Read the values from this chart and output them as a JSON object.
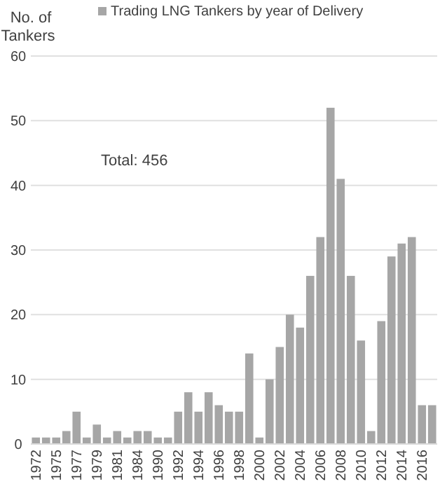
{
  "chart_data": {
    "type": "bar",
    "ylabel": "No. of Tankers",
    "categories": [
      "1972",
      null,
      "1975",
      null,
      "1977",
      null,
      "1979",
      null,
      "1981",
      null,
      "1984",
      null,
      "1990",
      null,
      "1992",
      null,
      "1994",
      null,
      "1996",
      null,
      "1998",
      null,
      "2000",
      null,
      "2002",
      null,
      "2004",
      null,
      "2006",
      null,
      "2008",
      null,
      "2010",
      null,
      "2012",
      null,
      "2014",
      null,
      "2016",
      null
    ],
    "series": [
      {
        "name": "Trading LNG Tankers by year of Delivery",
        "color": "#a6a6a6",
        "values": [
          1,
          1,
          1,
          2,
          5,
          1,
          3,
          1,
          2,
          1,
          2,
          2,
          1,
          1,
          5,
          8,
          5,
          8,
          6,
          5,
          5,
          14,
          1,
          10,
          15,
          20,
          18,
          26,
          32,
          52,
          41,
          26,
          16,
          2,
          19,
          29,
          31,
          32,
          6,
          6
        ]
      }
    ],
    "ylim": [
      0,
      60
    ],
    "yticks": [
      0,
      10,
      20,
      30,
      40,
      50,
      60
    ],
    "grid": "y",
    "legend": "top",
    "annotations": [
      "Total: 456"
    ]
  }
}
